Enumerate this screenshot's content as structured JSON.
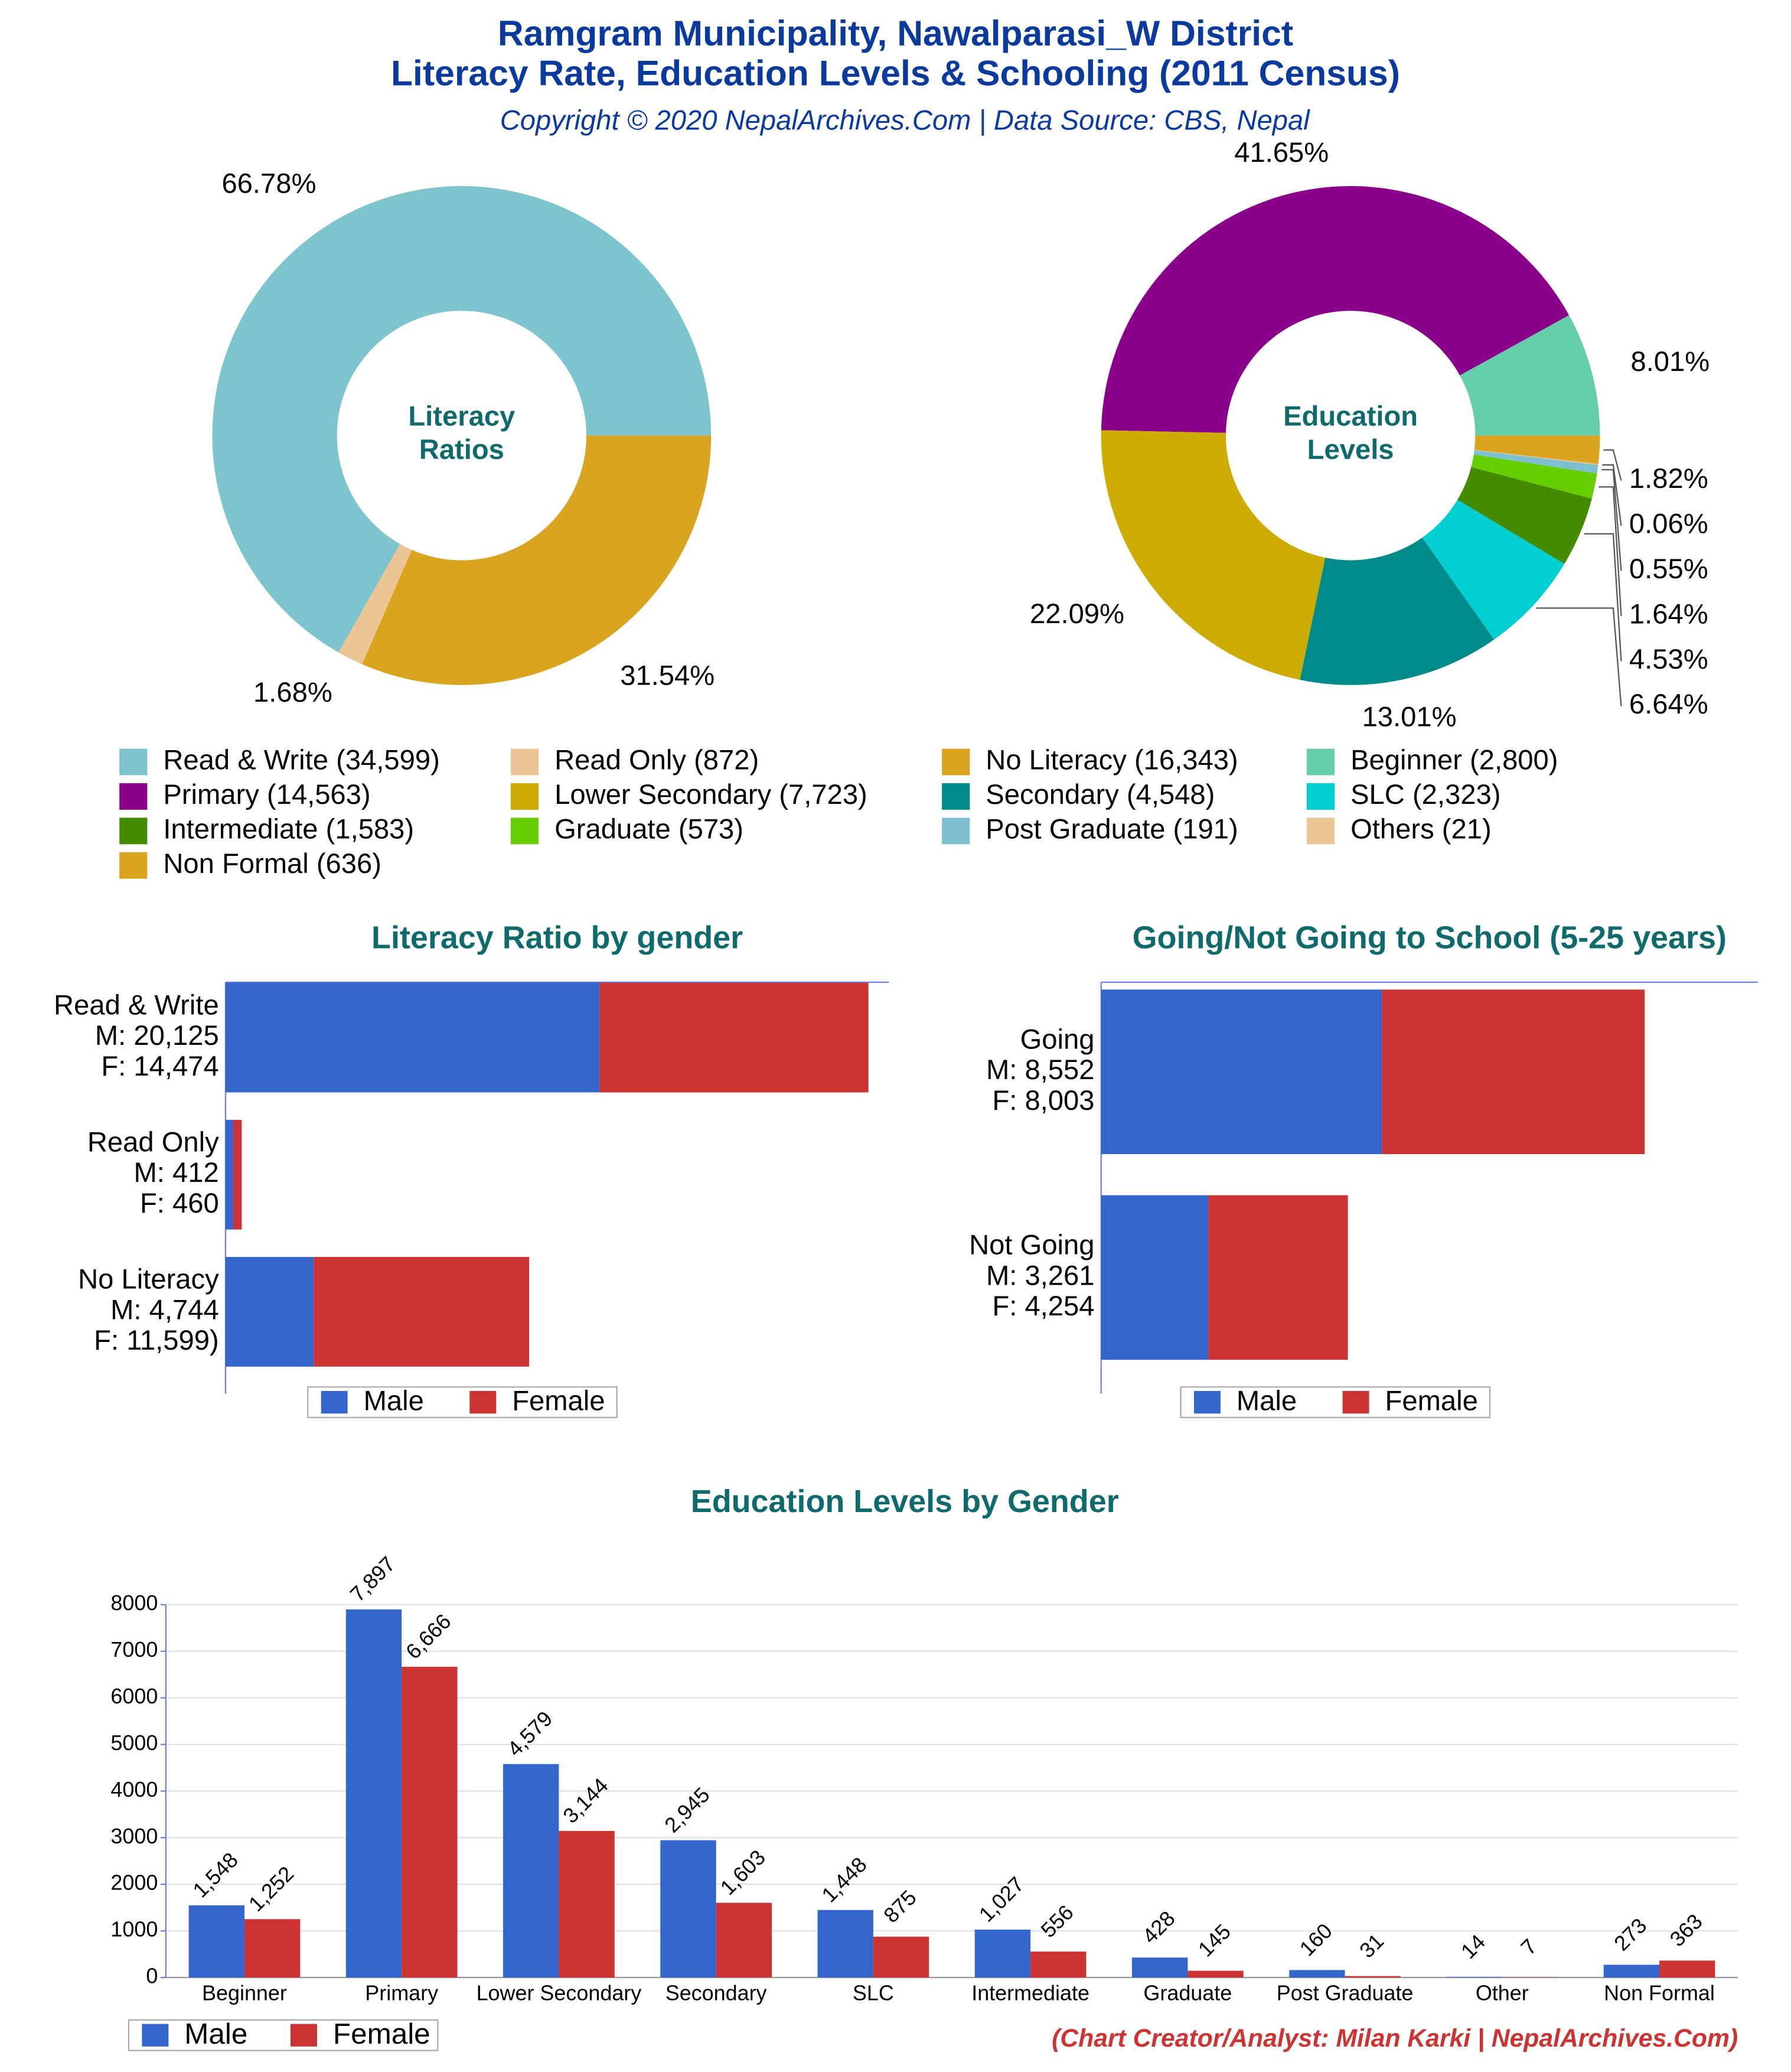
{
  "title": [
    "Ramgram Municipality, Nawalparasi_W District",
    "Literacy Rate, Education Levels & Schooling (2011 Census)"
  ],
  "subtitle": "Copyright © 2020 NepalArchives.Com | Data Source: CBS, Nepal",
  "credit": "(Chart Creator/Analyst: Milan Karki | NepalArchives.Com)",
  "legend": {
    "entries": [
      {
        "label": "Read & Write (34,599)",
        "color": "#7dc4cc"
      },
      {
        "label": "Read Only (872)",
        "color": "#ebc595"
      },
      {
        "label": "No Literacy (16,343)",
        "color": "#d9a521"
      },
      {
        "label": "Beginner (2,800)",
        "color": "#66cdaa"
      },
      {
        "label": "Primary (14,563)",
        "color": "#8b008b"
      },
      {
        "label": "Lower Secondary (7,723)",
        "color": "#ccac00"
      },
      {
        "label": "Secondary (4,548)",
        "color": "#008b8b"
      },
      {
        "label": "SLC (2,323)",
        "color": "#00ced1"
      },
      {
        "label": "Intermediate (1,583)",
        "color": "#458b00"
      },
      {
        "label": "Graduate (573)",
        "color": "#66cd00"
      },
      {
        "label": "Post Graduate (191)",
        "color": "#7ec0d0"
      },
      {
        "label": "Others (21)",
        "color": "#ebc595"
      },
      {
        "label": "Non Formal (636)",
        "color": "#d9a521"
      }
    ]
  },
  "chart_data": [
    {
      "type": "pie",
      "center_label": [
        "Literacy",
        "Ratios"
      ],
      "categories": [
        "Read & Write",
        "Read Only",
        "No Literacy"
      ],
      "values": [
        66.78,
        1.68,
        31.54
      ],
      "value_labels": [
        "66.78%",
        "1.68%",
        "31.54%"
      ],
      "colors": [
        "#7dc4cc",
        "#ebc595",
        "#d9a521"
      ]
    },
    {
      "type": "pie",
      "center_label": [
        "Education",
        "Levels"
      ],
      "categories": [
        "Beginner",
        "Primary",
        "Lower Secondary",
        "Secondary",
        "SLC",
        "Intermediate",
        "Graduate",
        "Post Graduate",
        "Others",
        "Non Formal"
      ],
      "values": [
        8.01,
        41.65,
        22.09,
        13.01,
        6.64,
        4.53,
        1.64,
        0.55,
        0.06,
        1.82
      ],
      "value_labels": [
        "8.01%",
        "41.65%",
        "22.09%",
        "13.01%",
        "6.64%",
        "4.53%",
        "1.64%",
        "0.55%",
        "0.06%",
        "1.82%"
      ],
      "colors": [
        "#66cdaa",
        "#8b008b",
        "#ccac00",
        "#008b8b",
        "#00ced1",
        "#458b00",
        "#66cd00",
        "#7ec0d0",
        "#ebc595",
        "#d9a521"
      ]
    },
    {
      "type": "hbar",
      "title": "Literacy Ratio by gender",
      "categories": [
        [
          "Read & Write",
          "M: 20,125",
          "F: 14,474"
        ],
        [
          "Read Only",
          "M: 412",
          "F: 460"
        ],
        [
          "No Literacy",
          "M: 4,744",
          "F: 11,599)"
        ]
      ],
      "series": [
        {
          "name": "Male",
          "color": "#3366cc",
          "values": [
            20125,
            412,
            4744
          ]
        },
        {
          "name": "Female",
          "color": "#cc3333",
          "values": [
            14474,
            460,
            11599
          ]
        }
      ],
      "xlim": [
        0,
        35700
      ]
    },
    {
      "type": "hbar",
      "title": "Going/Not Going to School (5-25 years)",
      "categories": [
        [
          "Going",
          "M: 8,552",
          "F: 8,003"
        ],
        [
          "Not Going",
          "M: 3,261",
          "F: 4,254"
        ]
      ],
      "series": [
        {
          "name": "Male",
          "color": "#3366cc",
          "values": [
            8552,
            3261
          ]
        },
        {
          "name": "Female",
          "color": "#cc3333",
          "values": [
            8003,
            4254
          ]
        }
      ],
      "xlim": [
        0,
        20000
      ]
    },
    {
      "type": "bar",
      "title": "Education Levels by Gender",
      "categories": [
        "Beginner",
        "Primary",
        "Lower Secondary",
        "Secondary",
        "SLC",
        "Intermediate",
        "Graduate",
        "Post Graduate",
        "Other",
        "Non Formal"
      ],
      "series": [
        {
          "name": "Male",
          "color": "#3366cc",
          "values": [
            1548,
            7897,
            4579,
            2945,
            1448,
            1027,
            428,
            160,
            14,
            273
          ],
          "value_labels": [
            "1,548",
            "7,897",
            "4,579",
            "2,945",
            "1,448",
            "1,027",
            "428",
            "160",
            "14",
            "273"
          ]
        },
        {
          "name": "Female",
          "color": "#cc3333",
          "values": [
            1252,
            6666,
            3144,
            1603,
            875,
            556,
            145,
            31,
            7,
            363
          ],
          "value_labels": [
            "1,252",
            "6,666",
            "3,144",
            "1,603",
            "875",
            "556",
            "145",
            "31",
            "7",
            "363"
          ]
        }
      ],
      "ylim": [
        0,
        8000
      ],
      "yticks": [
        0,
        1000,
        2000,
        3000,
        4000,
        5000,
        6000,
        7000,
        8000
      ],
      "grid": true
    }
  ]
}
